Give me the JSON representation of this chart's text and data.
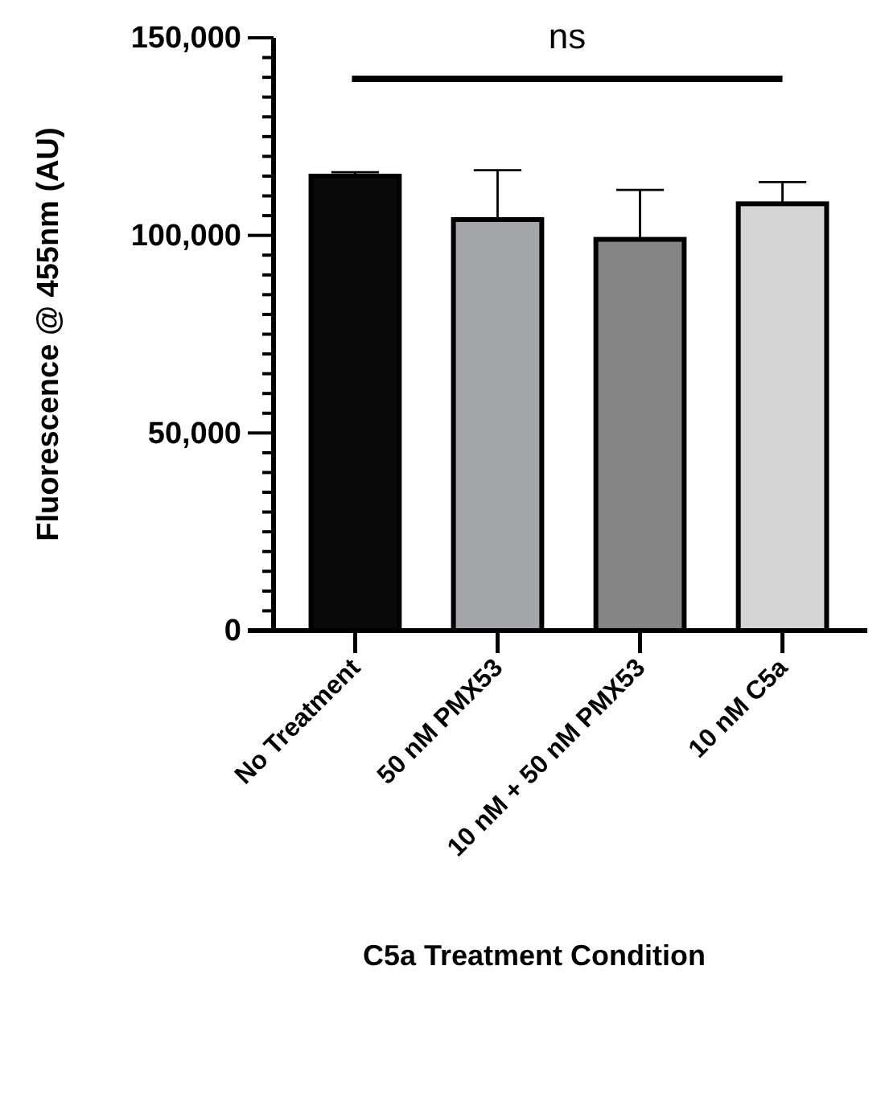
{
  "chart_data": {
    "type": "bar",
    "categories": [
      "No Treatment",
      "50 nM PMX53",
      "10 nM + 50 nM PMX53",
      "10 nM C5a"
    ],
    "values": [
      115000,
      104000,
      99000,
      108000
    ],
    "errors": [
      1000,
      12500,
      12500,
      5500
    ],
    "colors": [
      "#0a0a0a",
      "#a4a5a9",
      "#858585",
      "#d4d4d4"
    ],
    "xlabel": "C5a Treatment Condition",
    "ylabel": "Fluorescence @ 455nm (AU)",
    "annotations": [
      "ns"
    ],
    "ylim": [
      0,
      150000
    ],
    "yticks": [
      {
        "value": 0,
        "label": "0"
      },
      {
        "value": 5000,
        "label": null
      },
      {
        "value": 10000,
        "label": null
      },
      {
        "value": 15000,
        "label": null
      },
      {
        "value": 20000,
        "label": null
      },
      {
        "value": 25000,
        "label": null
      },
      {
        "value": 30000,
        "label": null
      },
      {
        "value": 35000,
        "label": null
      },
      {
        "value": 40000,
        "label": null
      },
      {
        "value": 45000,
        "label": null
      },
      {
        "value": 50000,
        "label": "50,000"
      },
      {
        "value": 55000,
        "label": null
      },
      {
        "value": 60000,
        "label": null
      },
      {
        "value": 65000,
        "label": null
      },
      {
        "value": 70000,
        "label": null
      },
      {
        "value": 75000,
        "label": null
      },
      {
        "value": 80000,
        "label": null
      },
      {
        "value": 85000,
        "label": null
      },
      {
        "value": 90000,
        "label": null
      },
      {
        "value": 95000,
        "label": null
      },
      {
        "value": 100000,
        "label": "100,000"
      },
      {
        "value": 105000,
        "label": null
      },
      {
        "value": 110000,
        "label": null
      },
      {
        "value": 115000,
        "label": null
      },
      {
        "value": 120000,
        "label": null
      },
      {
        "value": 125000,
        "label": null
      },
      {
        "value": 130000,
        "label": null
      },
      {
        "value": 135000,
        "label": null
      },
      {
        "value": 140000,
        "label": null
      },
      {
        "value": 145000,
        "label": null
      },
      {
        "value": 150000,
        "label": "150,000"
      }
    ],
    "grid": false
  }
}
